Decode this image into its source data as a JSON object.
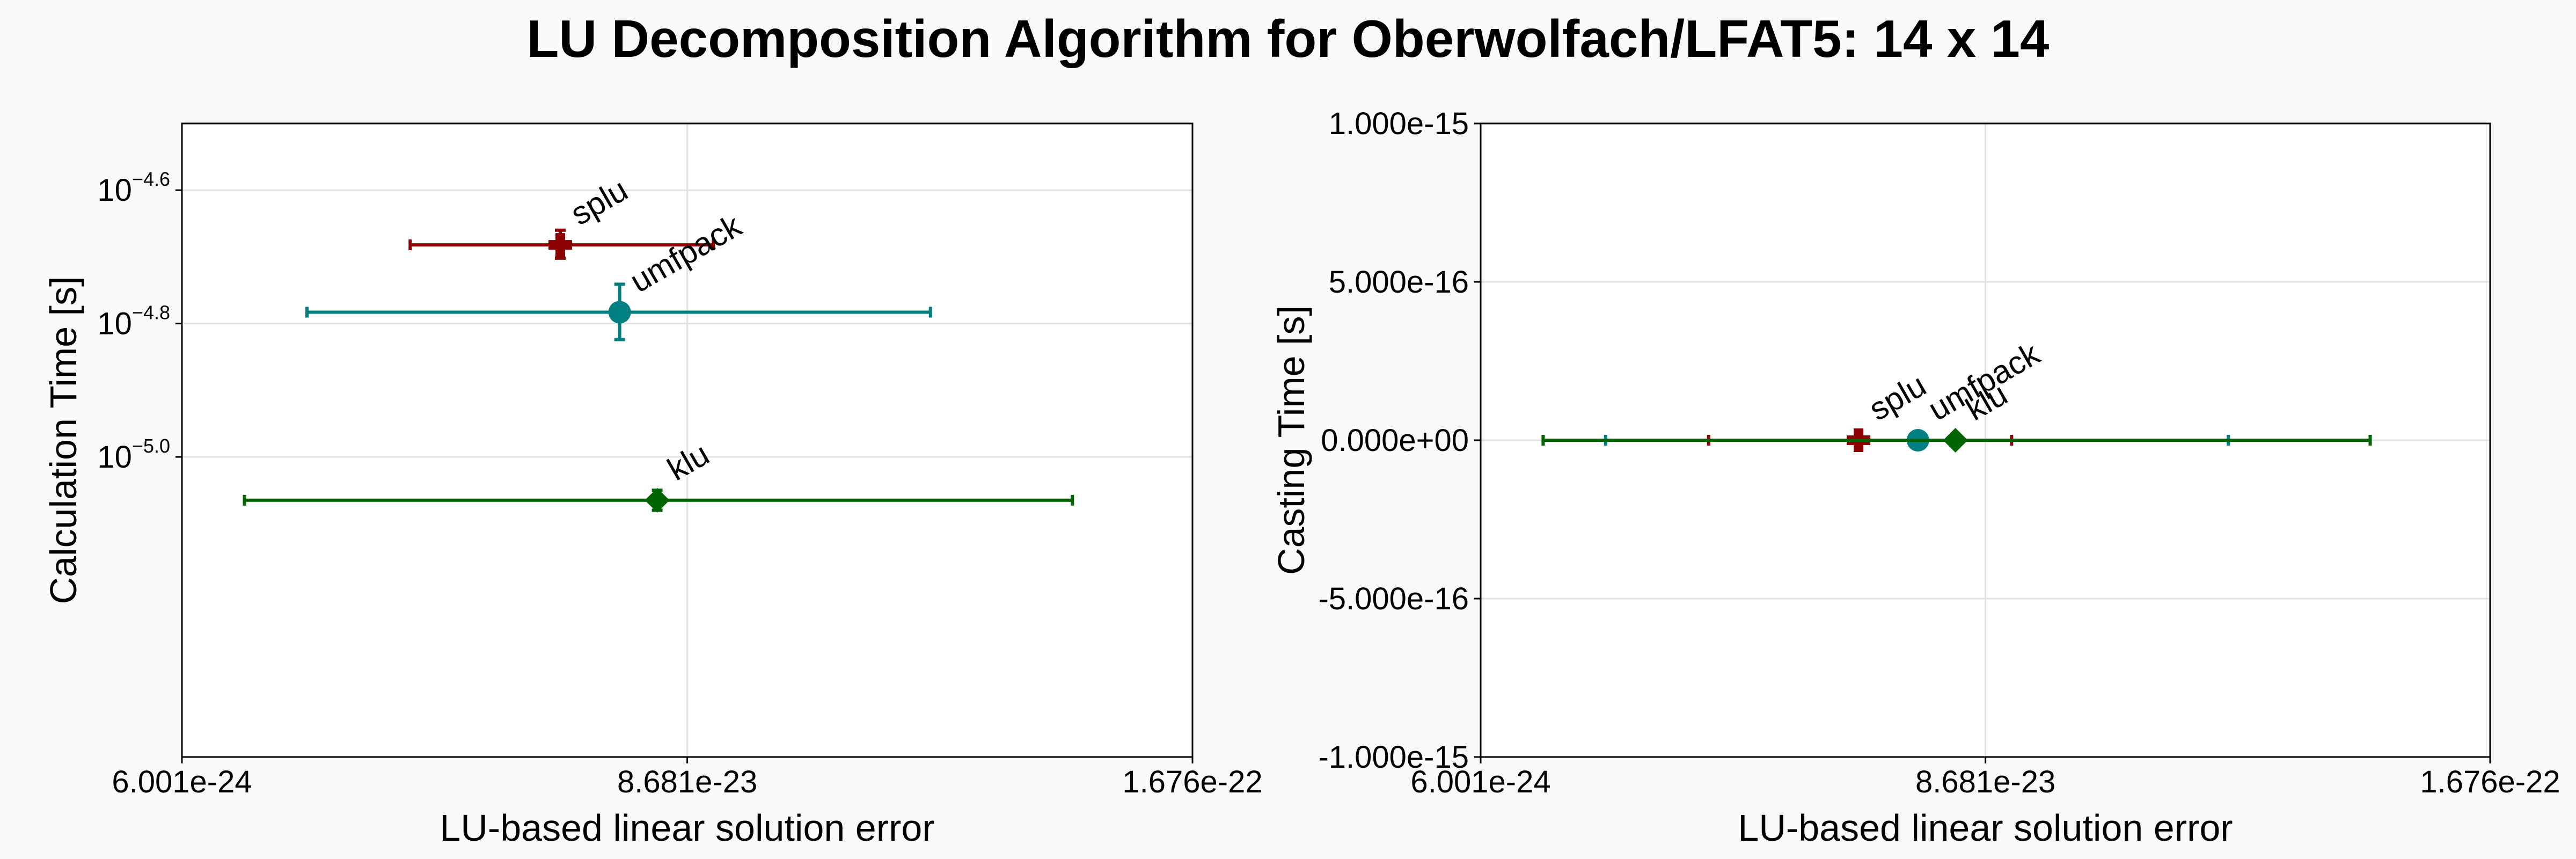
{
  "title": "LU Decomposition Algorithm for Oberwolfach/LFAT5: 14 x 14",
  "colors": {
    "splu": "#8b0000",
    "umfpack": "#008080",
    "klu": "#006400"
  },
  "chart_data": [
    {
      "type": "scatter",
      "xlabel": "LU-based linear solution error",
      "ylabel": "Calculation Time [s]",
      "xlim": [
        6.001e-24,
        1.676e-22
      ],
      "ylim_log10": [
        -5.45,
        -4.5
      ],
      "yscale": "log",
      "x_ticks": [
        {
          "value": 6.001e-24,
          "label": "6.001e-24"
        },
        {
          "value": 8.681e-23,
          "label": "8.681e-23"
        },
        {
          "value": 1.676e-22,
          "label": "1.676e-22"
        }
      ],
      "y_ticks": [
        {
          "value": -4.6,
          "base": "10",
          "exp": "−4.6"
        },
        {
          "value": -4.8,
          "base": "10",
          "exp": "−4.8"
        },
        {
          "value": -5.0,
          "base": "10",
          "exp": "−5.0"
        }
      ],
      "grid": true,
      "series": [
        {
          "name": "splu",
          "marker": "cross",
          "x": 6.65e-23,
          "x_low": 4.25e-23,
          "x_high": 9.1e-23,
          "y": -4.682,
          "y_low": -4.702,
          "y_high": -4.66
        },
        {
          "name": "umfpack",
          "marker": "circle",
          "x": 7.6e-23,
          "x_low": 2.6e-23,
          "x_high": 1.257e-22,
          "y": -4.783,
          "y_low": -4.824,
          "y_high": -4.741
        },
        {
          "name": "klu",
          "marker": "diamond",
          "x": 8.2e-23,
          "x_low": 1.6e-23,
          "x_high": 1.484e-22,
          "y": -5.065,
          "y_low": -5.08,
          "y_high": -5.05
        }
      ]
    },
    {
      "type": "scatter",
      "xlabel": "LU-based linear solution error",
      "ylabel": "Casting Time [s]",
      "xlim": [
        6.001e-24,
        1.676e-22
      ],
      "ylim": [
        -1e-15,
        1e-15
      ],
      "yscale": "linear",
      "x_ticks": [
        {
          "value": 6.001e-24,
          "label": "6.001e-24"
        },
        {
          "value": 8.681e-23,
          "label": "8.681e-23"
        },
        {
          "value": 1.676e-22,
          "label": "1.676e-22"
        }
      ],
      "y_ticks": [
        {
          "value": 1e-15,
          "label": "1.000e-15"
        },
        {
          "value": 5e-16,
          "label": "5.000e-16"
        },
        {
          "value": 0,
          "label": "0.000e+00"
        },
        {
          "value": -5e-16,
          "label": "-5.000e-16"
        },
        {
          "value": -1e-15,
          "label": "-1.000e-15"
        }
      ],
      "grid": true,
      "series": [
        {
          "name": "splu",
          "marker": "cross",
          "x": 6.65e-23,
          "x_low": 4.25e-23,
          "x_high": 9.1e-23,
          "y": 0,
          "y_low": 0,
          "y_high": 0
        },
        {
          "name": "umfpack",
          "marker": "circle",
          "x": 7.6e-23,
          "x_low": 2.6e-23,
          "x_high": 1.257e-22,
          "y": 0,
          "y_low": 0,
          "y_high": 0
        },
        {
          "name": "klu",
          "marker": "diamond",
          "x": 8.2e-23,
          "x_low": 1.6e-23,
          "x_high": 1.484e-22,
          "y": 0,
          "y_low": 0,
          "y_high": 0
        }
      ]
    }
  ]
}
